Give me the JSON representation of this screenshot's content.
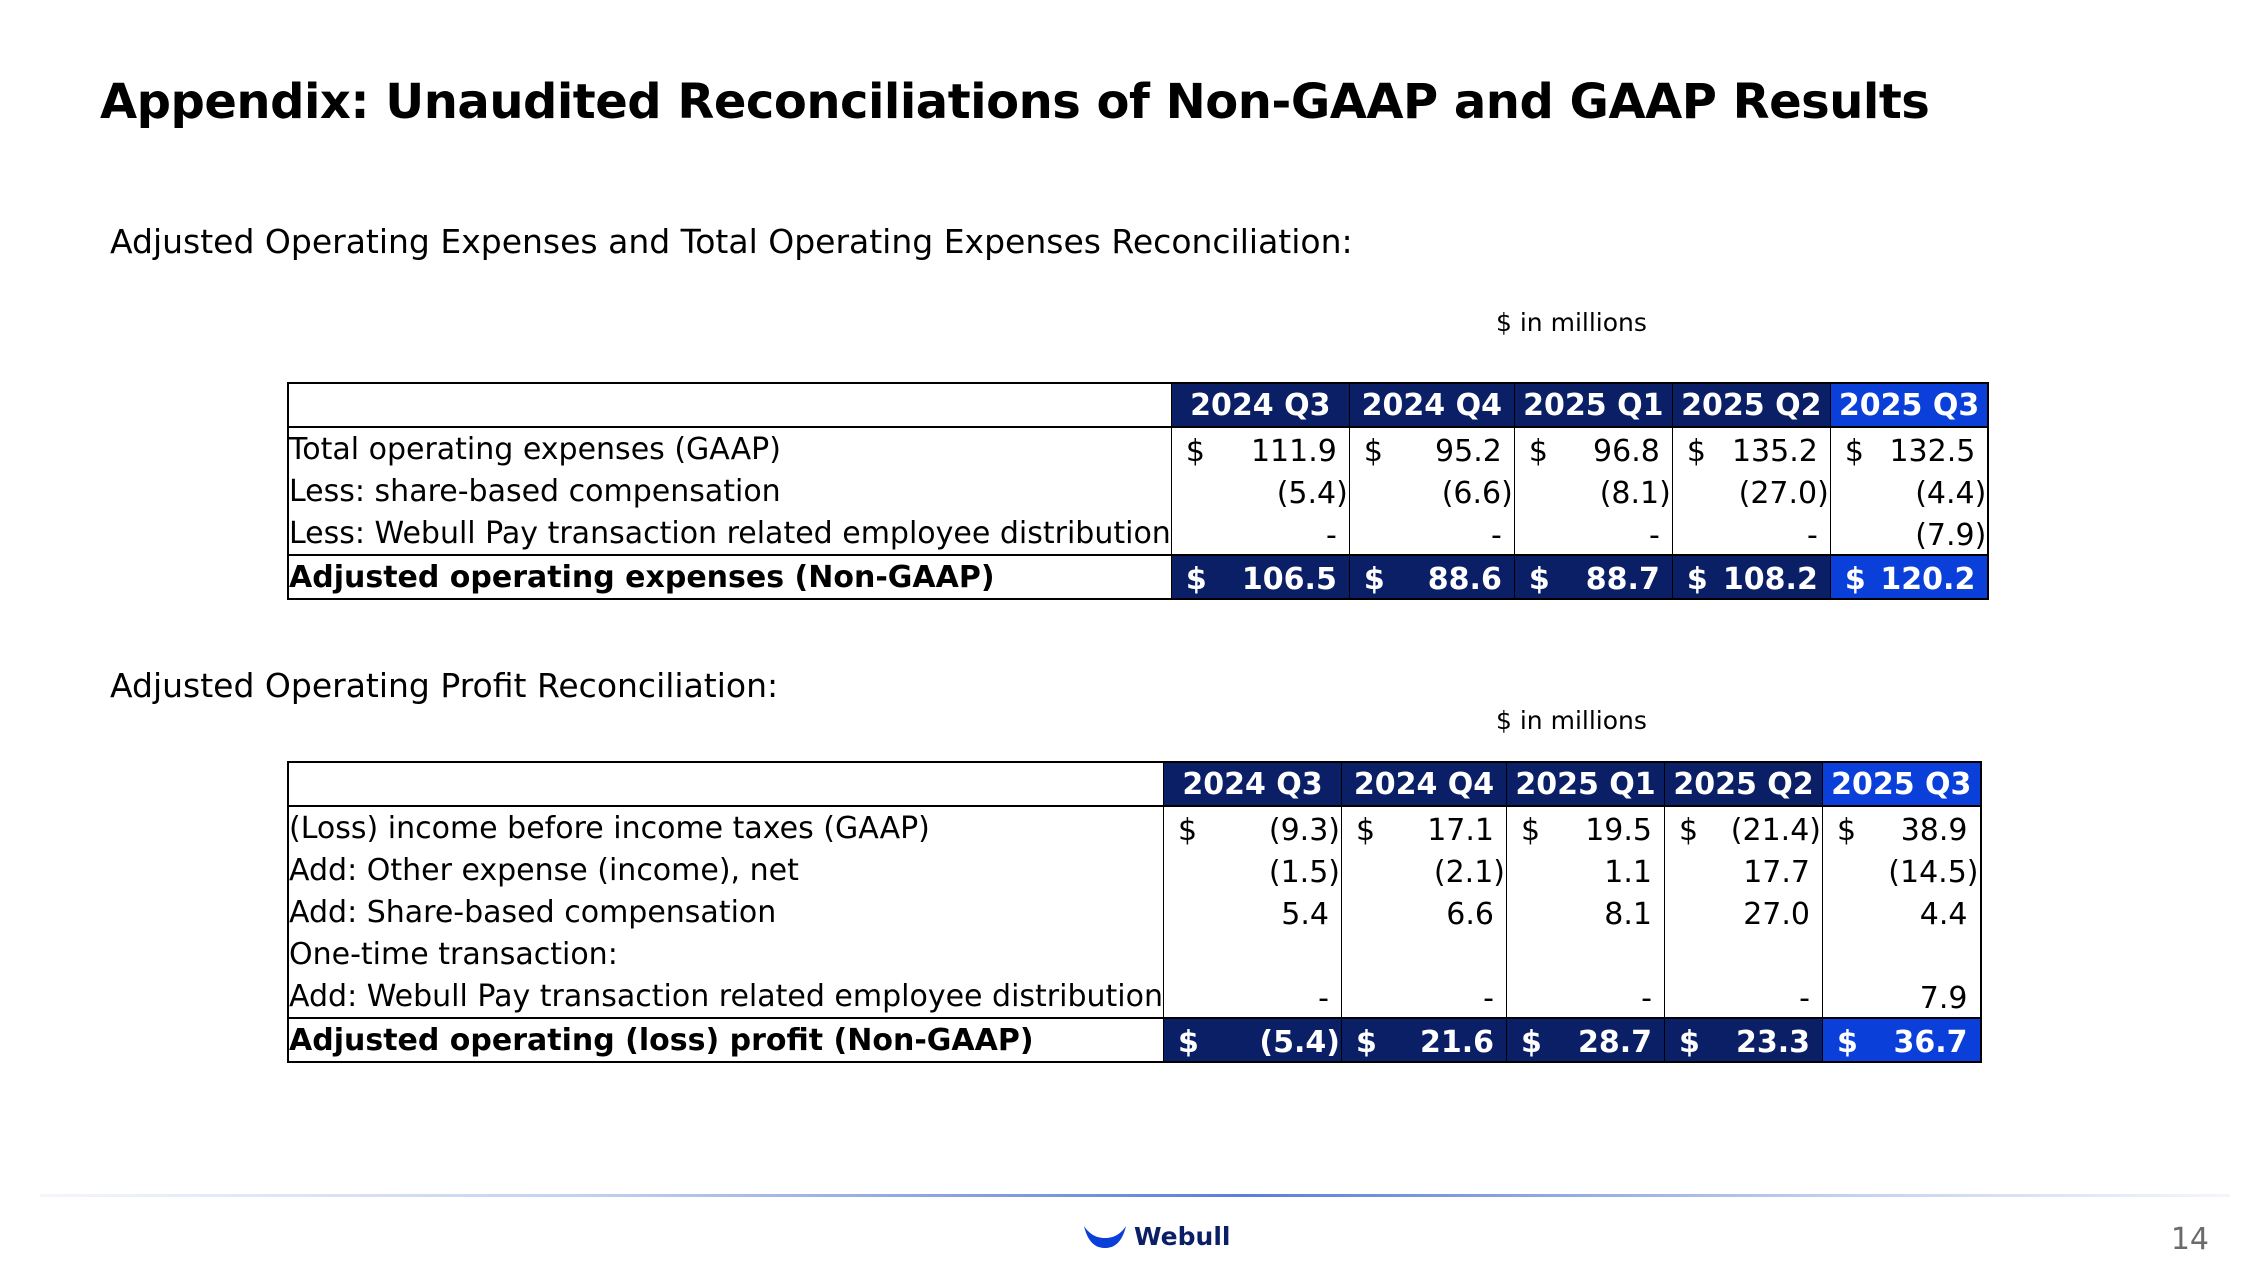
{
  "page": {
    "title": "Appendix: Unaudited Reconciliations of Non-GAAP and GAAP Results",
    "page_number": "14",
    "brand": "Webull",
    "colors": {
      "header_dark": "#0a1f66",
      "header_current": "#0b3fd9",
      "brand_blue": "#0b3fd9"
    }
  },
  "opex": {
    "section_title": "Adjusted Operating Expenses and Total Operating Expenses Reconciliation:",
    "units": "$ in millions",
    "columns": [
      "2024 Q3",
      "2024 Q4",
      "2025 Q1",
      "2025 Q2",
      "2025 Q3"
    ],
    "rows": [
      {
        "label": "Total operating expenses (GAAP)",
        "currency": [
          "$",
          "$",
          "$",
          "$",
          "$"
        ],
        "values": [
          "111.9",
          "95.2",
          "96.8",
          "135.2",
          "132.5"
        ]
      },
      {
        "label": "Less: share-based compensation",
        "currency": [
          "",
          "",
          "",
          "",
          ""
        ],
        "values": [
          "(5.4)",
          "(6.6)",
          "(8.1)",
          "(27.0)",
          "(4.4)"
        ]
      },
      {
        "label": "Less: Webull Pay transaction related employee distribution",
        "currency": [
          "",
          "",
          "",
          "",
          ""
        ],
        "values": [
          "-",
          "-",
          "-",
          "-",
          "(7.9)"
        ]
      }
    ],
    "total": {
      "label": "Adjusted operating expenses (Non-GAAP)",
      "currency": [
        "$",
        "$",
        "$",
        "$",
        "$"
      ],
      "values": [
        "106.5",
        "88.6",
        "88.7",
        "108.2",
        "120.2"
      ]
    }
  },
  "profit": {
    "section_title": "Adjusted Operating Profit Reconciliation:",
    "units": "$ in millions",
    "columns": [
      "2024 Q3",
      "2024 Q4",
      "2025 Q1",
      "2025 Q2",
      "2025 Q3"
    ],
    "rows": [
      {
        "label": "(Loss) income before income taxes (GAAP)",
        "currency": [
          "$",
          "$",
          "$",
          "$",
          "$"
        ],
        "values": [
          "(9.3)",
          "17.1",
          "19.5",
          "(21.4)",
          "38.9"
        ]
      },
      {
        "label": "Add: Other expense (income), net",
        "currency": [
          "",
          "",
          "",
          "",
          ""
        ],
        "values": [
          "(1.5)",
          "(2.1)",
          "1.1",
          "17.7",
          "(14.5)"
        ]
      },
      {
        "label": "Add: Share-based compensation",
        "currency": [
          "",
          "",
          "",
          "",
          ""
        ],
        "values": [
          "5.4",
          "6.6",
          "8.1",
          "27.0",
          "4.4"
        ]
      },
      {
        "label": "One-time transaction:",
        "currency": [
          "",
          "",
          "",
          "",
          ""
        ],
        "values": [
          "",
          "",
          "",
          "",
          ""
        ]
      },
      {
        "label": "Add: Webull Pay transaction related employee distribution",
        "currency": [
          "",
          "",
          "",
          "",
          ""
        ],
        "values": [
          "-",
          "-",
          "-",
          "-",
          "7.9"
        ]
      }
    ],
    "total": {
      "label": "Adjusted operating (loss) profit (Non-GAAP)",
      "currency": [
        "$",
        "$",
        "$",
        "$",
        "$"
      ],
      "values": [
        "(5.4)",
        "21.6",
        "28.7",
        "23.3",
        "36.7"
      ]
    }
  }
}
